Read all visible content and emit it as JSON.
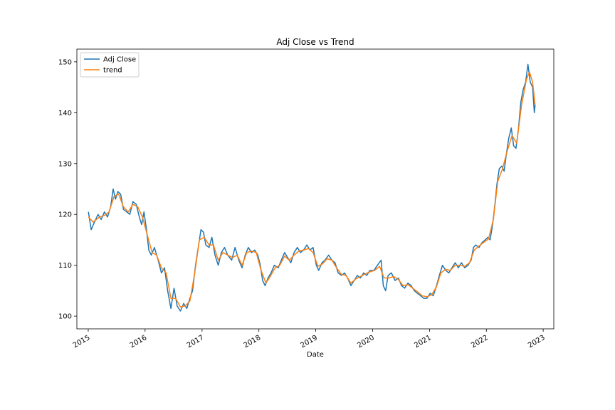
{
  "chart_data": {
    "type": "line",
    "title": "Adj Close vs Trend",
    "xlabel": "Date",
    "ylabel": "",
    "xlim": [
      "2014-10-20",
      "2023-03-10"
    ],
    "ylim": [
      97.5,
      152.5
    ],
    "x_ticks": [
      "2015",
      "2016",
      "2017",
      "2018",
      "2019",
      "2020",
      "2021",
      "2022",
      "2023"
    ],
    "y_ticks": [
      100,
      110,
      120,
      130,
      140,
      150
    ],
    "grid": false,
    "legend": "top-left",
    "series": [
      {
        "name": "Adj Close",
        "color": "#1f77b4",
        "points": [
          [
            "2015-01-02",
            120.5
          ],
          [
            "2015-01-20",
            117.0
          ],
          [
            "2015-02-10",
            118.5
          ],
          [
            "2015-03-05",
            120.0
          ],
          [
            "2015-03-25",
            119.0
          ],
          [
            "2015-04-15",
            120.5
          ],
          [
            "2015-05-05",
            119.5
          ],
          [
            "2015-05-25",
            121.5
          ],
          [
            "2015-06-10",
            125.0
          ],
          [
            "2015-06-25",
            123.0
          ],
          [
            "2015-07-10",
            124.5
          ],
          [
            "2015-07-28",
            124.0
          ],
          [
            "2015-08-15",
            121.0
          ],
          [
            "2015-09-05",
            120.5
          ],
          [
            "2015-09-25",
            120.0
          ],
          [
            "2015-10-15",
            122.5
          ],
          [
            "2015-11-05",
            122.0
          ],
          [
            "2015-11-25",
            119.5
          ],
          [
            "2015-12-10",
            118.0
          ],
          [
            "2015-12-25",
            120.5
          ],
          [
            "2016-01-10",
            117.0
          ],
          [
            "2016-01-25",
            113.0
          ],
          [
            "2016-02-10",
            112.0
          ],
          [
            "2016-03-01",
            113.5
          ],
          [
            "2016-03-25",
            111.0
          ],
          [
            "2016-04-15",
            108.5
          ],
          [
            "2016-05-05",
            109.5
          ],
          [
            "2016-05-25",
            105.0
          ],
          [
            "2016-06-15",
            101.5
          ],
          [
            "2016-07-05",
            105.5
          ],
          [
            "2016-07-25",
            102.0
          ],
          [
            "2016-08-15",
            101.0
          ],
          [
            "2016-09-05",
            102.5
          ],
          [
            "2016-09-25",
            101.5
          ],
          [
            "2016-10-15",
            103.5
          ],
          [
            "2016-11-01",
            105.0
          ],
          [
            "2016-11-20",
            110.0
          ],
          [
            "2016-12-10",
            114.0
          ],
          [
            "2016-12-25",
            117.0
          ],
          [
            "2017-01-10",
            116.5
          ],
          [
            "2017-01-25",
            114.0
          ],
          [
            "2017-02-15",
            113.5
          ],
          [
            "2017-03-05",
            115.5
          ],
          [
            "2017-03-25",
            112.0
          ],
          [
            "2017-04-15",
            110.0
          ],
          [
            "2017-05-05",
            112.5
          ],
          [
            "2017-05-25",
            113.5
          ],
          [
            "2017-06-15",
            112.0
          ],
          [
            "2017-07-10",
            111.0
          ],
          [
            "2017-08-01",
            113.5
          ],
          [
            "2017-08-25",
            111.0
          ],
          [
            "2017-09-15",
            109.5
          ],
          [
            "2017-10-05",
            112.0
          ],
          [
            "2017-10-25",
            113.5
          ],
          [
            "2017-11-15",
            112.5
          ],
          [
            "2017-12-05",
            113.0
          ],
          [
            "2017-12-25",
            112.0
          ],
          [
            "2018-01-10",
            110.0
          ],
          [
            "2018-01-25",
            107.0
          ],
          [
            "2018-02-10",
            106.0
          ],
          [
            "2018-03-01",
            107.5
          ],
          [
            "2018-03-20",
            108.5
          ],
          [
            "2018-04-10",
            110.0
          ],
          [
            "2018-05-05",
            109.5
          ],
          [
            "2018-05-25",
            111.0
          ],
          [
            "2018-06-15",
            112.5
          ],
          [
            "2018-07-05",
            111.5
          ],
          [
            "2018-07-25",
            110.5
          ],
          [
            "2018-08-15",
            112.5
          ],
          [
            "2018-09-05",
            113.5
          ],
          [
            "2018-09-25",
            112.5
          ],
          [
            "2018-10-15",
            113.0
          ],
          [
            "2018-11-05",
            114.0
          ],
          [
            "2018-11-25",
            113.0
          ],
          [
            "2018-12-15",
            113.5
          ],
          [
            "2019-01-05",
            110.0
          ],
          [
            "2019-01-20",
            109.0
          ],
          [
            "2019-02-10",
            110.5
          ],
          [
            "2019-03-01",
            111.0
          ],
          [
            "2019-03-25",
            112.0
          ],
          [
            "2019-04-15",
            111.0
          ],
          [
            "2019-05-05",
            110.5
          ],
          [
            "2019-05-25",
            108.5
          ],
          [
            "2019-06-15",
            108.0
          ],
          [
            "2019-07-05",
            108.5
          ],
          [
            "2019-07-25",
            107.5
          ],
          [
            "2019-08-15",
            106.0
          ],
          [
            "2019-09-05",
            107.0
          ],
          [
            "2019-09-25",
            108.0
          ],
          [
            "2019-10-15",
            107.5
          ],
          [
            "2019-11-05",
            108.5
          ],
          [
            "2019-11-25",
            108.0
          ],
          [
            "2019-12-15",
            109.0
          ],
          [
            "2020-01-10",
            109.0
          ],
          [
            "2020-02-01",
            110.0
          ],
          [
            "2020-02-25",
            111.0
          ],
          [
            "2020-03-10",
            106.0
          ],
          [
            "2020-03-25",
            105.0
          ],
          [
            "2020-04-10",
            108.0
          ],
          [
            "2020-05-01",
            108.5
          ],
          [
            "2020-05-25",
            107.0
          ],
          [
            "2020-06-15",
            107.5
          ],
          [
            "2020-07-05",
            106.0
          ],
          [
            "2020-07-25",
            105.5
          ],
          [
            "2020-08-15",
            106.5
          ],
          [
            "2020-09-05",
            106.0
          ],
          [
            "2020-09-25",
            105.0
          ],
          [
            "2020-10-15",
            104.5
          ],
          [
            "2020-11-05",
            104.0
          ],
          [
            "2020-11-25",
            103.5
          ],
          [
            "2020-12-15",
            103.5
          ],
          [
            "2021-01-05",
            104.5
          ],
          [
            "2021-01-25",
            104.0
          ],
          [
            "2021-02-15",
            106.0
          ],
          [
            "2021-03-05",
            108.0
          ],
          [
            "2021-03-25",
            110.0
          ],
          [
            "2021-04-15",
            109.0
          ],
          [
            "2021-05-05",
            108.5
          ],
          [
            "2021-05-25",
            109.5
          ],
          [
            "2021-06-15",
            110.5
          ],
          [
            "2021-07-05",
            109.5
          ],
          [
            "2021-07-25",
            110.5
          ],
          [
            "2021-08-15",
            109.5
          ],
          [
            "2021-09-05",
            110.0
          ],
          [
            "2021-09-25",
            111.0
          ],
          [
            "2021-10-10",
            113.5
          ],
          [
            "2021-10-25",
            114.0
          ],
          [
            "2021-11-15",
            113.5
          ],
          [
            "2021-12-05",
            114.5
          ],
          [
            "2021-12-25",
            115.0
          ],
          [
            "2022-01-10",
            115.5
          ],
          [
            "2022-01-25",
            115.0
          ],
          [
            "2022-02-10",
            118.0
          ],
          [
            "2022-02-25",
            122.0
          ],
          [
            "2022-03-10",
            126.0
          ],
          [
            "2022-03-25",
            129.0
          ],
          [
            "2022-04-10",
            129.5
          ],
          [
            "2022-04-25",
            128.5
          ],
          [
            "2022-05-10",
            132.0
          ],
          [
            "2022-05-25",
            135.0
          ],
          [
            "2022-06-10",
            137.0
          ],
          [
            "2022-06-25",
            133.5
          ],
          [
            "2022-07-10",
            133.0
          ],
          [
            "2022-07-25",
            136.5
          ],
          [
            "2022-08-10",
            142.0
          ],
          [
            "2022-08-25",
            144.5
          ],
          [
            "2022-09-10",
            146.0
          ],
          [
            "2022-09-25",
            149.5
          ],
          [
            "2022-10-10",
            146.0
          ],
          [
            "2022-10-25",
            145.0
          ],
          [
            "2022-11-05",
            140.0
          ],
          [
            "2022-11-10",
            141.5
          ]
        ]
      },
      {
        "name": "trend",
        "color": "#ff7f0e",
        "points": [
          [
            "2015-01-02",
            119.5
          ],
          [
            "2015-02-01",
            118.5
          ],
          [
            "2015-03-15",
            119.5
          ],
          [
            "2015-04-15",
            119.8
          ],
          [
            "2015-05-15",
            120.5
          ],
          [
            "2015-06-15",
            123.5
          ],
          [
            "2015-07-15",
            124.0
          ],
          [
            "2015-08-15",
            121.5
          ],
          [
            "2015-09-15",
            120.5
          ],
          [
            "2015-10-15",
            122.0
          ],
          [
            "2015-11-15",
            121.5
          ],
          [
            "2015-12-15",
            119.5
          ],
          [
            "2016-01-15",
            116.0
          ],
          [
            "2016-02-15",
            112.5
          ],
          [
            "2016-03-15",
            112.0
          ],
          [
            "2016-04-15",
            109.5
          ],
          [
            "2016-05-15",
            108.5
          ],
          [
            "2016-06-15",
            103.5
          ],
          [
            "2016-07-15",
            103.5
          ],
          [
            "2016-08-15",
            101.8
          ],
          [
            "2016-09-15",
            102.0
          ],
          [
            "2016-10-15",
            103.0
          ],
          [
            "2016-11-15",
            108.5
          ],
          [
            "2016-12-15",
            115.0
          ],
          [
            "2017-01-15",
            115.5
          ],
          [
            "2017-02-15",
            114.0
          ],
          [
            "2017-03-15",
            114.0
          ],
          [
            "2017-04-15",
            111.0
          ],
          [
            "2017-05-15",
            112.5
          ],
          [
            "2017-06-15",
            112.0
          ],
          [
            "2017-07-15",
            111.5
          ],
          [
            "2017-08-15",
            112.0
          ],
          [
            "2017-09-15",
            110.0
          ],
          [
            "2017-10-15",
            112.5
          ],
          [
            "2017-11-15",
            112.8
          ],
          [
            "2017-12-15",
            112.5
          ],
          [
            "2018-01-15",
            109.0
          ],
          [
            "2018-02-15",
            106.5
          ],
          [
            "2018-03-15",
            107.8
          ],
          [
            "2018-04-15",
            109.5
          ],
          [
            "2018-05-15",
            110.0
          ],
          [
            "2018-06-15",
            111.8
          ],
          [
            "2018-07-15",
            111.0
          ],
          [
            "2018-08-15",
            112.0
          ],
          [
            "2018-09-15",
            112.8
          ],
          [
            "2018-10-15",
            113.0
          ],
          [
            "2018-11-15",
            113.3
          ],
          [
            "2018-12-15",
            112.5
          ],
          [
            "2019-01-15",
            109.8
          ],
          [
            "2019-02-15",
            110.3
          ],
          [
            "2019-03-15",
            111.3
          ],
          [
            "2019-04-15",
            111.0
          ],
          [
            "2019-05-15",
            109.5
          ],
          [
            "2019-06-15",
            108.2
          ],
          [
            "2019-07-15",
            108.0
          ],
          [
            "2019-08-15",
            106.5
          ],
          [
            "2019-09-15",
            107.3
          ],
          [
            "2019-10-15",
            107.8
          ],
          [
            "2019-11-15",
            108.3
          ],
          [
            "2019-12-15",
            108.7
          ],
          [
            "2020-01-15",
            109.0
          ],
          [
            "2020-02-15",
            109.8
          ],
          [
            "2020-03-15",
            107.5
          ],
          [
            "2020-04-15",
            107.5
          ],
          [
            "2020-05-15",
            107.8
          ],
          [
            "2020-06-15",
            107.2
          ],
          [
            "2020-07-15",
            106.0
          ],
          [
            "2020-08-15",
            106.2
          ],
          [
            "2020-09-15",
            105.5
          ],
          [
            "2020-10-15",
            104.8
          ],
          [
            "2020-11-15",
            104.0
          ],
          [
            "2020-12-15",
            103.8
          ],
          [
            "2021-01-15",
            104.2
          ],
          [
            "2021-02-15",
            105.8
          ],
          [
            "2021-03-15",
            108.5
          ],
          [
            "2021-04-15",
            109.2
          ],
          [
            "2021-05-15",
            109.0
          ],
          [
            "2021-06-15",
            110.0
          ],
          [
            "2021-07-15",
            110.0
          ],
          [
            "2021-08-15",
            109.8
          ],
          [
            "2021-09-15",
            110.5
          ],
          [
            "2021-10-15",
            113.0
          ],
          [
            "2021-11-15",
            113.8
          ],
          [
            "2021-12-15",
            114.5
          ],
          [
            "2022-01-15",
            115.2
          ],
          [
            "2022-02-15",
            119.0
          ],
          [
            "2022-03-15",
            126.5
          ],
          [
            "2022-04-15",
            129.0
          ],
          [
            "2022-05-15",
            132.5
          ],
          [
            "2022-06-15",
            135.5
          ],
          [
            "2022-07-15",
            134.0
          ],
          [
            "2022-08-15",
            141.5
          ],
          [
            "2022-09-15",
            146.5
          ],
          [
            "2022-10-05",
            148.0
          ],
          [
            "2022-10-25",
            146.0
          ],
          [
            "2022-11-10",
            141.5
          ]
        ]
      }
    ]
  }
}
